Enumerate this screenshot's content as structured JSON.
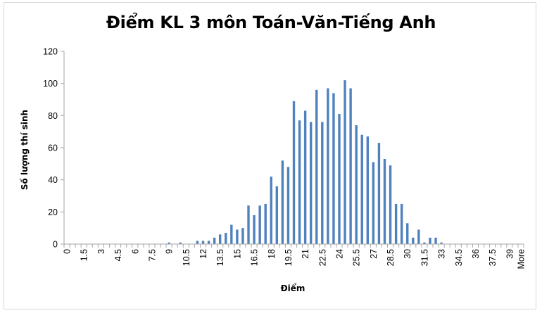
{
  "chart_data": {
    "type": "bar",
    "title": "Điểm KL 3 môn Toán-Văn-Tiếng Anh",
    "xlabel": "Điểm",
    "ylabel": "Số lượng thí sinh",
    "ylim": [
      0,
      120
    ],
    "yticks": [
      "0",
      "20",
      "40",
      "60",
      "80",
      "100",
      "120"
    ],
    "grid": false,
    "legend": "none",
    "bar_color": "#4f81bd",
    "categories": [
      "0",
      "0.5",
      "1",
      "1.5",
      "2",
      "2.5",
      "3",
      "3.5",
      "4",
      "4.5",
      "5",
      "5.5",
      "6",
      "6.5",
      "7",
      "7.5",
      "8",
      "8.5",
      "9",
      "9.5",
      "10",
      "10.5",
      "11",
      "11.5",
      "12",
      "12.5",
      "13",
      "13.5",
      "14",
      "14.5",
      "15",
      "15.5",
      "16",
      "16.5",
      "17",
      "17.5",
      "18",
      "18.5",
      "19",
      "19.5",
      "20",
      "20.5",
      "21",
      "21.5",
      "22",
      "22.5",
      "23",
      "23.5",
      "24",
      "24.5",
      "25",
      "25.5",
      "26",
      "26.5",
      "27",
      "27.5",
      "28",
      "28.5",
      "29",
      "29.5",
      "30",
      "30.5",
      "31",
      "31.5",
      "32",
      "32.5",
      "33",
      "33.5",
      "34",
      "34.5",
      "35",
      "35.5",
      "36",
      "36.5",
      "37",
      "37.5",
      "38",
      "38.5",
      "39",
      "39.5",
      "More"
    ],
    "tick_labels": [
      "0",
      "1.5",
      "3",
      "4.5",
      "6",
      "7.5",
      "9",
      "10.5",
      "12",
      "13.5",
      "15",
      "16.5",
      "18",
      "19.5",
      "21",
      "22.5",
      "24",
      "25.5",
      "27",
      "28.5",
      "30",
      "31.5",
      "33",
      "34.5",
      "36",
      "37.5",
      "39",
      "More"
    ],
    "values": [
      0,
      0,
      0,
      0,
      0,
      0,
      0,
      0,
      0,
      0,
      0,
      0,
      0,
      0,
      0,
      0,
      0,
      0,
      1,
      0,
      1,
      0,
      0,
      2,
      2,
      2,
      4,
      6,
      7,
      12,
      9,
      10,
      24,
      18,
      24,
      25,
      42,
      36,
      52,
      48,
      89,
      77,
      83,
      76,
      96,
      76,
      97,
      94,
      81,
      102,
      97,
      74,
      68,
      67,
      51,
      63,
      53,
      49,
      25,
      25,
      13,
      4,
      9,
      1,
      4,
      4,
      1,
      0,
      0,
      0,
      0,
      0,
      0,
      0,
      0,
      0,
      0,
      0,
      0,
      0,
      0
    ]
  }
}
